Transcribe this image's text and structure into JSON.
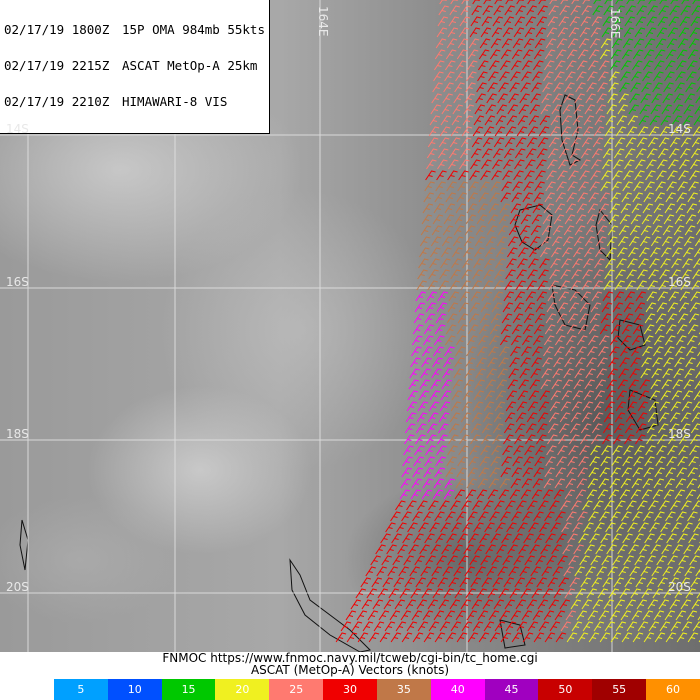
{
  "header": {
    "lines": [
      {
        "date": "02/17/19 1800Z",
        "text": "15P OMA 984mb 55kts"
      },
      {
        "date": "02/17/19 2215Z",
        "text": "ASCAT MetOp-A 25km"
      },
      {
        "date": "02/17/19 2210Z",
        "text": "HIMAWARI-8 VIS"
      }
    ]
  },
  "grid_labels": {
    "lon": [
      "164E",
      "166E"
    ],
    "lat_left": [
      "14S",
      "16S",
      "18S",
      "20S"
    ],
    "lat_right": [
      "14S",
      "16S",
      "18S",
      "20S"
    ]
  },
  "footer": {
    "source": "FNMOC https://www.fnmoc.navy.mil/tcweb/cgi-bin/tc_home.cgi",
    "legend_title": "ASCAT (MetOp-A) Vectors (knots)",
    "legend": [
      {
        "value": "5",
        "color": "#00a0ff"
      },
      {
        "value": "10",
        "color": "#0050ff"
      },
      {
        "value": "15",
        "color": "#00c800"
      },
      {
        "value": "20",
        "color": "#f0f020"
      },
      {
        "value": "25",
        "color": "#ff7a70"
      },
      {
        "value": "30",
        "color": "#f00000"
      },
      {
        "value": "35",
        "color": "#c07848"
      },
      {
        "value": "40",
        "color": "#ff00ff"
      },
      {
        "value": "45",
        "color": "#a000c0"
      },
      {
        "value": "50",
        "color": "#c80000"
      },
      {
        "value": "55",
        "color": "#a00000"
      },
      {
        "value": "60",
        "color": "#ff9000"
      }
    ]
  }
}
